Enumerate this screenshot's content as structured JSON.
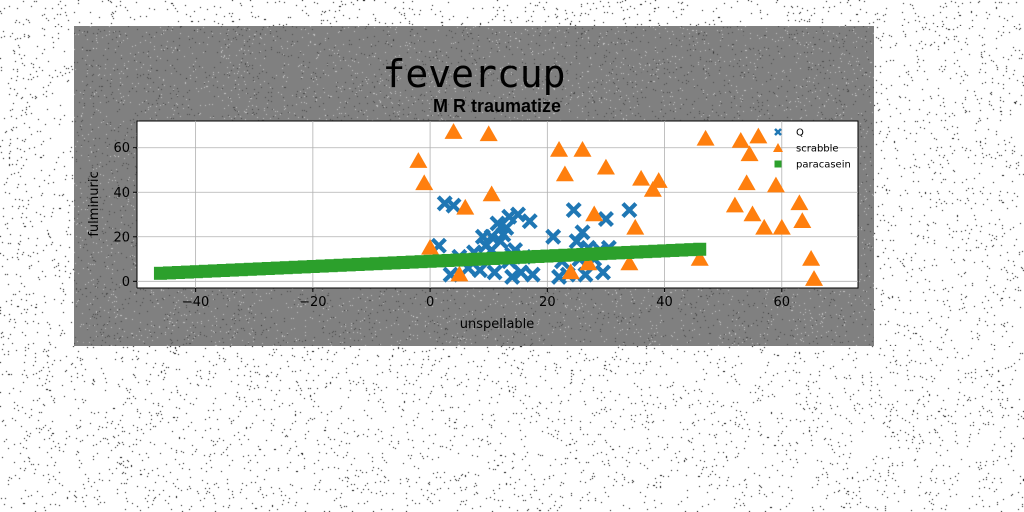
{
  "figure": {
    "title": "fevercup",
    "background": "#808080"
  },
  "chart_data": {
    "type": "scatter",
    "title": "M R traumatize",
    "xlabel": "unspellable",
    "ylabel": "fulminuric",
    "xlim": [
      -50,
      73
    ],
    "ylim": [
      -3,
      72
    ],
    "xticks": [
      -40,
      -20,
      0,
      20,
      40,
      60
    ],
    "yticks": [
      0,
      20,
      40,
      60
    ],
    "grid": true,
    "legend_position": "top-right",
    "series": [
      {
        "name": "Q",
        "marker": "x",
        "color": "#1f77b4",
        "x": [
          1.5,
          2.5,
          3.5,
          4,
          5,
          6.5,
          7.5,
          8.5,
          9,
          9.5,
          10.5,
          11,
          11.5,
          12,
          12.5,
          13,
          13.5,
          14,
          14.5,
          15,
          15.5,
          16,
          17,
          17.5,
          21,
          22,
          22.5,
          23.5,
          24.5,
          25,
          25.5,
          26,
          26.5,
          27,
          28,
          29,
          29.5,
          30,
          34
        ],
        "y": [
          16,
          35,
          3,
          34,
          11,
          6,
          13,
          5,
          20,
          16,
          14,
          4,
          26,
          18,
          21,
          24,
          9,
          2,
          14,
          30,
          4,
          11,
          27,
          3,
          20,
          2,
          9,
          3,
          32,
          18,
          10,
          22,
          3,
          15,
          10,
          14,
          4,
          28,
          32
        ],
        "extra": [
          [
            30.5,
            15
          ],
          [
            13.5,
            29
          ],
          [
            14,
            12
          ],
          [
            10.5,
            20
          ]
        ]
      },
      {
        "name": "scrabble",
        "marker": "^",
        "color": "#ff7f0e",
        "x": [
          -2,
          -1,
          0,
          4,
          5,
          6,
          10,
          10.5,
          22,
          23,
          24,
          26,
          27,
          28,
          30,
          34,
          35,
          36,
          38,
          39,
          46,
          47,
          52,
          53,
          54,
          54.5,
          55,
          56,
          57,
          59,
          60,
          63,
          63.5,
          65,
          65.5
        ],
        "y": [
          54,
          44,
          15,
          67,
          3,
          33,
          66,
          39,
          59,
          48,
          4,
          59,
          8,
          30,
          51,
          8,
          24,
          46,
          41,
          45,
          10,
          64,
          34,
          63,
          44,
          57,
          30,
          65,
          24,
          43,
          24,
          35,
          27,
          10,
          1
        ]
      },
      {
        "name": "paracasein",
        "marker": "s",
        "color": "#2ca02c",
        "x": [
          -46,
          46
        ],
        "y": [
          3.6,
          14.4
        ]
      }
    ]
  }
}
